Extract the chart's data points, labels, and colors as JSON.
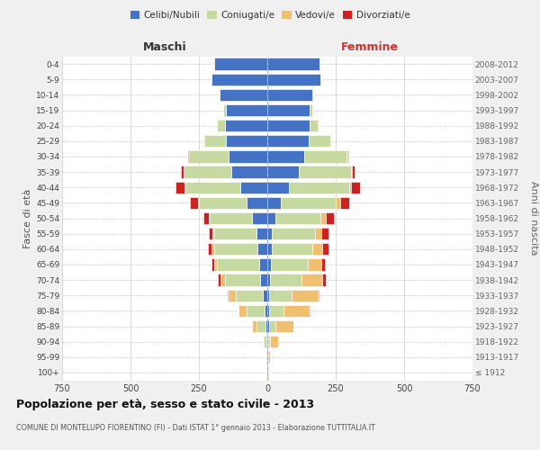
{
  "age_groups": [
    "100+",
    "95-99",
    "90-94",
    "85-89",
    "80-84",
    "75-79",
    "70-74",
    "65-69",
    "60-64",
    "55-59",
    "50-54",
    "45-49",
    "40-44",
    "35-39",
    "30-34",
    "25-29",
    "20-24",
    "15-19",
    "10-14",
    "5-9",
    "0-4"
  ],
  "birth_years": [
    "≤ 1912",
    "1913-1917",
    "1918-1922",
    "1923-1927",
    "1928-1932",
    "1933-1937",
    "1938-1942",
    "1943-1947",
    "1948-1952",
    "1953-1957",
    "1958-1962",
    "1963-1967",
    "1968-1972",
    "1973-1977",
    "1978-1982",
    "1983-1987",
    "1988-1992",
    "1993-1997",
    "1998-2002",
    "2003-2007",
    "2008-2012"
  ],
  "maschi": {
    "celibi": [
      2,
      2,
      3,
      5,
      10,
      15,
      25,
      30,
      35,
      40,
      55,
      75,
      100,
      130,
      140,
      150,
      155,
      150,
      175,
      205,
      195
    ],
    "coniugati": [
      2,
      4,
      10,
      35,
      65,
      100,
      130,
      155,
      160,
      155,
      155,
      175,
      200,
      175,
      145,
      80,
      30,
      10,
      2,
      3,
      3
    ],
    "vedovi": [
      0,
      2,
      5,
      15,
      30,
      25,
      15,
      10,
      8,
      5,
      3,
      2,
      2,
      1,
      1,
      2,
      0,
      0,
      0,
      0,
      0
    ],
    "divorziati": [
      0,
      0,
      0,
      0,
      0,
      5,
      10,
      10,
      15,
      15,
      20,
      30,
      35,
      10,
      5,
      2,
      0,
      0,
      0,
      0,
      0
    ]
  },
  "femmine": {
    "nubili": [
      2,
      2,
      3,
      5,
      5,
      8,
      10,
      12,
      15,
      18,
      30,
      50,
      80,
      115,
      135,
      150,
      155,
      155,
      165,
      195,
      190
    ],
    "coniugate": [
      1,
      2,
      8,
      25,
      55,
      80,
      115,
      135,
      150,
      155,
      165,
      200,
      220,
      190,
      155,
      80,
      30,
      10,
      3,
      3,
      2
    ],
    "vedove": [
      2,
      5,
      30,
      65,
      90,
      95,
      75,
      50,
      35,
      25,
      20,
      15,
      5,
      3,
      2,
      2,
      1,
      0,
      0,
      0,
      0
    ],
    "divorziate": [
      0,
      0,
      0,
      2,
      5,
      5,
      15,
      15,
      25,
      25,
      30,
      35,
      35,
      10,
      5,
      2,
      1,
      0,
      0,
      0,
      0
    ]
  },
  "colors": {
    "celibi": "#4472c4",
    "coniugati": "#c5d9a0",
    "vedovi": "#f0c070",
    "divorziati": "#cc2222"
  },
  "xlim": 750,
  "title": "Popolazione per età, sesso e stato civile - 2013",
  "subtitle": "COMUNE DI MONTELUPO FIORENTINO (FI) - Dati ISTAT 1° gennaio 2013 - Elaborazione TUTTITALIA.IT",
  "ylabel_left": "Fasce di età",
  "ylabel_right": "Anni di nascita",
  "xlabel_maschi": "Maschi",
  "xlabel_femmine": "Femmine",
  "background_color": "#f0f0f0",
  "plot_background": "#ffffff",
  "legend_labels": [
    "Celibi/Nubili",
    "Coniugati/e",
    "Vedovi/e",
    "Divorziati/e"
  ]
}
